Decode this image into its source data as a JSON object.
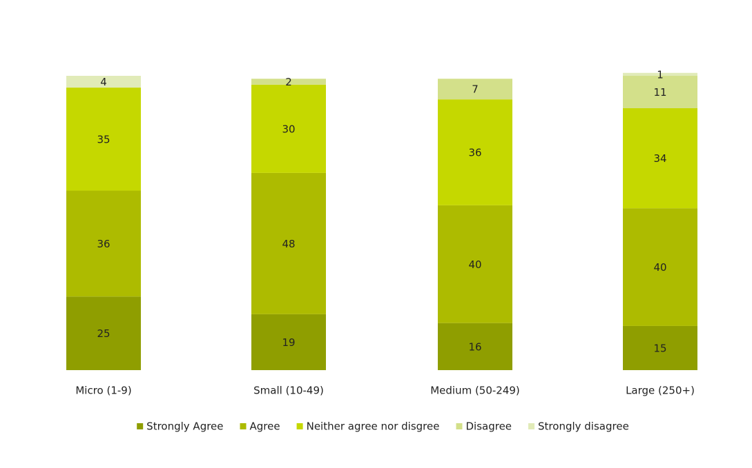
{
  "chart_data": {
    "type": "stacked-bar",
    "categories": [
      "Micro (1-9)",
      "Small (10-49)",
      "Medium (50-249)",
      "Large (250+)"
    ],
    "series": [
      {
        "name": "Strongly Agree",
        "color": "#8f9e00",
        "values": [
          25,
          19,
          16,
          15
        ]
      },
      {
        "name": "Agree",
        "color": "#adbb00",
        "values": [
          36,
          48,
          40,
          40
        ]
      },
      {
        "name": "Neither agree nor disgree",
        "color": "#c5d800",
        "values": [
          35,
          30,
          36,
          34
        ]
      },
      {
        "name": "Disagree",
        "color": "#d3e08a",
        "values": [
          null,
          2,
          7,
          11
        ]
      },
      {
        "name": "Strongly disagree",
        "color": "#e1ebb8",
        "values": [
          4,
          null,
          null,
          1
        ]
      }
    ],
    "legend": "bottom"
  }
}
